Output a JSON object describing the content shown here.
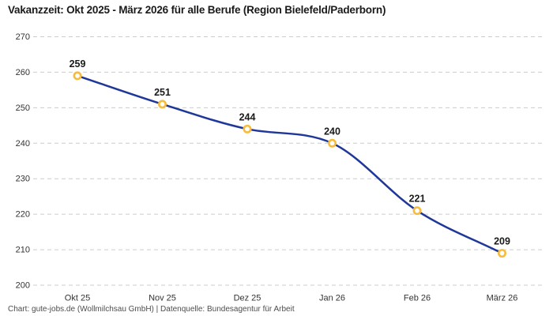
{
  "chart_data": {
    "type": "line",
    "title": "Vakanzzeit: Okt 2025 - März 2026 für alle Berufe (Region Bielefeld/Paderborn)",
    "categories": [
      "Okt 25",
      "Nov 25",
      "Dez 25",
      "Jan 26",
      "Feb 26",
      "März 26"
    ],
    "series": [
      {
        "name": "Vakanzzeit",
        "values": [
          259,
          251,
          244,
          240,
          221,
          209
        ]
      }
    ],
    "data_labels": [
      "259",
      "251",
      "244",
      "240",
      "221",
      "209"
    ],
    "xlabel": "",
    "ylabel": "",
    "ylim": [
      200,
      270
    ],
    "yticks": [
      200,
      210,
      220,
      230,
      240,
      250,
      260,
      270
    ],
    "grid": "horizontal-dashed",
    "legend_position": "none",
    "curve": "monotone",
    "footer": "Chart: gute-jobs.de (Wollmilchsau GmbH) | Datenquelle: Bundesagentur für Arbeit",
    "colors": {
      "line": "#1e3799",
      "marker_stroke": "#f7bb3d",
      "marker_fill": "#ffffff",
      "gridline": "#cccccc",
      "tick_label": "#333333",
      "data_label": "#1a1a1a",
      "title": "#1a1a1a",
      "footer": "#4d4d4d",
      "background": "#ffffff"
    }
  }
}
